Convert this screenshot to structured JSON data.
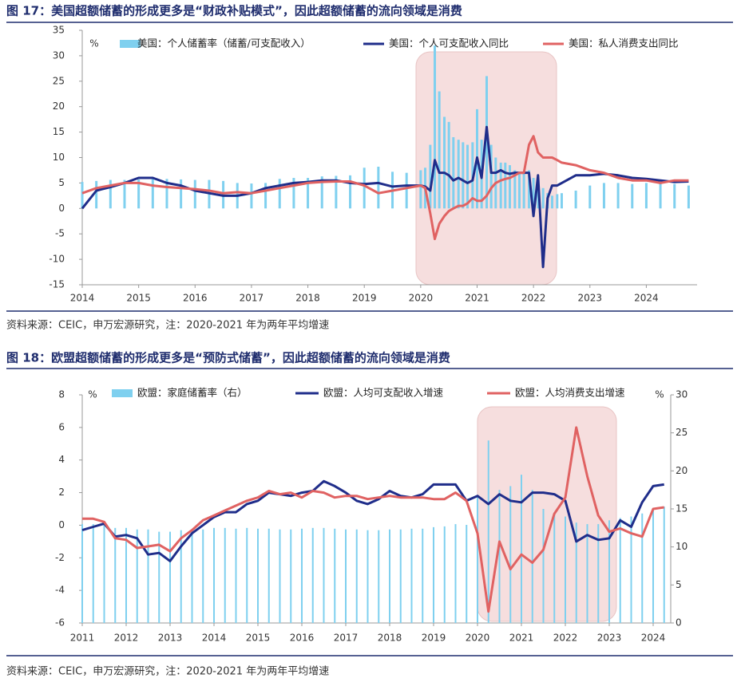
{
  "chart_data": [
    {
      "type": "combo",
      "title": "图 17：美国超额储蓄的形成更多是“财政补贴模式”，因此超额储蓄的流向领域是消费",
      "note": "资料来源：CEIC，申万宏源研究，注：2020-2021 年为两年平均增速",
      "y_unit": "%",
      "x": [
        2014,
        2014.25,
        2014.5,
        2014.75,
        2015,
        2015.25,
        2015.5,
        2015.75,
        2016,
        2016.25,
        2016.5,
        2016.75,
        2017,
        2017.25,
        2017.5,
        2017.75,
        2018,
        2018.25,
        2018.5,
        2018.75,
        2019,
        2019.25,
        2019.5,
        2019.75,
        2020,
        2020.08,
        2020.17,
        2020.25,
        2020.33,
        2020.42,
        2020.5,
        2020.58,
        2020.67,
        2020.75,
        2020.83,
        2020.92,
        2021,
        2021.08,
        2021.17,
        2021.25,
        2021.33,
        2021.42,
        2021.5,
        2021.58,
        2021.67,
        2021.75,
        2021.83,
        2021.92,
        2022,
        2022.08,
        2022.17,
        2022.25,
        2022.33,
        2022.42,
        2022.5,
        2022.75,
        2023,
        2023.25,
        2023.5,
        2023.75,
        2024,
        2024.25,
        2024.5,
        2024.75
      ],
      "xlim": [
        2014,
        2024.9
      ],
      "xticks": [
        2014,
        2015,
        2016,
        2017,
        2018,
        2019,
        2020,
        2021,
        2022,
        2023,
        2024
      ],
      "ylim": [
        -15,
        35
      ],
      "yticks": [
        -15,
        -10,
        -5,
        0,
        5,
        10,
        15,
        20,
        25,
        30,
        35
      ],
      "series": [
        {
          "name": "美国：个人储蓄率（储蓄/可支配收入）",
          "type": "bar",
          "color": "#7fd0ef",
          "values": [
            5.2,
            5.4,
            5.6,
            5.6,
            5.7,
            5.8,
            5.8,
            5.7,
            5.6,
            5.6,
            5.4,
            5.0,
            4.9,
            5.0,
            5.8,
            6.0,
            6.0,
            6.3,
            6.4,
            6.5,
            8.0,
            8.2,
            7.2,
            7.0,
            7.5,
            8,
            12.5,
            32,
            23,
            18,
            17,
            14,
            13.5,
            13,
            12.5,
            13,
            19.5,
            13.5,
            26,
            12.5,
            10,
            9,
            9,
            8.5,
            7.5,
            7,
            7,
            7.5,
            6,
            5,
            4,
            3,
            2.5,
            2.8,
            3,
            3.5,
            4.5,
            5,
            5,
            4.8,
            5,
            5,
            4.8,
            4.5
          ]
        },
        {
          "name": "美国：个人可支配收入同比",
          "type": "line",
          "color": "#1f2d8a",
          "values": [
            0,
            3.5,
            4.2,
            5.0,
            6.0,
            6.0,
            5.0,
            4.5,
            3.5,
            3.0,
            2.5,
            2.5,
            3.0,
            4.0,
            4.5,
            5.0,
            5.2,
            5.5,
            5.5,
            5.0,
            4.8,
            5.0,
            4.3,
            4.5,
            4.5,
            4.3,
            3.5,
            9.5,
            7.0,
            7.0,
            6.5,
            5.5,
            6.0,
            5.5,
            5.0,
            5.5,
            10.0,
            6.0,
            16.0,
            7.0,
            7.0,
            7.5,
            7.0,
            6.8,
            7.0,
            7.0,
            7.0,
            7.0,
            -1.5,
            6.5,
            -11.5,
            2,
            4.5,
            4.5,
            5,
            6.5,
            6.5,
            6.8,
            6.5,
            6,
            5.8,
            5.5,
            5.2,
            5.3
          ]
        },
        {
          "name": "美国：私人消费支出同比",
          "type": "line",
          "color": "#e06262",
          "values": [
            3,
            4,
            4.5,
            5.0,
            5.0,
            4.5,
            4.2,
            4.0,
            3.8,
            3.5,
            3.0,
            3.2,
            3.0,
            3.5,
            4.0,
            4.5,
            5.0,
            5.2,
            5.3,
            5.3,
            4.5,
            3.0,
            3.5,
            4.0,
            4.5,
            4,
            -1,
            -6,
            -3,
            -1.5,
            -0.5,
            0,
            0.5,
            0.5,
            1,
            2,
            1.5,
            1.5,
            2.5,
            4,
            5,
            5.5,
            5.8,
            6,
            6.5,
            7,
            7,
            12.5,
            14.2,
            11,
            10,
            10,
            10,
            9.5,
            9,
            8.5,
            7.5,
            7,
            6,
            5.5,
            5.5,
            5,
            5.5,
            5.5
          ]
        }
      ]
    },
    {
      "type": "combo",
      "title": "图 18：欧盟超额储蓄的形成更多是“预防式储蓄”，因此超额储蓄的流向领域是消费",
      "note": "资料来源：CEIC，申万宏源研究，注：2020-2021 年为两年平均增速",
      "y_unit": "%",
      "y2_unit": "%",
      "x": [
        2011,
        2011.25,
        2011.5,
        2011.75,
        2012,
        2012.25,
        2012.5,
        2012.75,
        2013,
        2013.25,
        2013.5,
        2013.75,
        2014,
        2014.25,
        2014.5,
        2014.75,
        2015,
        2015.25,
        2015.5,
        2015.75,
        2016,
        2016.25,
        2016.5,
        2016.75,
        2017,
        2017.25,
        2017.5,
        2017.75,
        2018,
        2018.25,
        2018.5,
        2018.75,
        2019,
        2019.25,
        2019.5,
        2019.75,
        2020,
        2020.25,
        2020.5,
        2020.75,
        2021,
        2021.25,
        2021.5,
        2021.75,
        2022,
        2022.25,
        2022.5,
        2022.75,
        2023,
        2023.25,
        2023.5,
        2023.75,
        2024,
        2024.25
      ],
      "xlim": [
        2011,
        2024.4
      ],
      "xticks": [
        2011,
        2012,
        2013,
        2014,
        2015,
        2016,
        2017,
        2018,
        2019,
        2020,
        2021,
        2022,
        2023,
        2024
      ],
      "ylim": [
        -6,
        8
      ],
      "yticks": [
        -6,
        -4,
        -2,
        0,
        2,
        4,
        6,
        8
      ],
      "y2lim": [
        0,
        30
      ],
      "y2ticks": [
        0,
        5,
        10,
        15,
        20,
        25,
        30
      ],
      "series": [
        {
          "name": "欧盟：家庭储蓄率（右）",
          "type": "bar",
          "axis": "y2",
          "color": "#7fd0ef",
          "values": [
            13,
            13,
            12.8,
            12.5,
            12.5,
            12.3,
            12.3,
            12.0,
            12.0,
            12.2,
            12.2,
            12.3,
            12.5,
            12.5,
            12.4,
            12.5,
            12.4,
            12.4,
            12.3,
            12.3,
            12.4,
            12.5,
            12.5,
            12.4,
            12.3,
            12.3,
            12.2,
            12.2,
            12.3,
            12.3,
            12.4,
            12.4,
            12.6,
            12.7,
            13.0,
            12.9,
            16.5,
            24.0,
            17.5,
            18.0,
            19.5,
            17.5,
            15.0,
            14.3,
            14.0,
            13.2,
            13.0,
            13.0,
            13.5,
            13.8,
            14.0,
            14.4,
            15.0,
            15.3
          ]
        },
        {
          "name": "欧盟：人均可支配收入增速",
          "type": "line",
          "color": "#1f2d8a",
          "values": [
            -0.3,
            -0.1,
            0.1,
            -0.7,
            -0.6,
            -0.8,
            -1.8,
            -1.7,
            -2.2,
            -1.3,
            -0.5,
            0,
            0.5,
            0.8,
            0.8,
            1.3,
            1.5,
            2.0,
            1.9,
            1.8,
            2.0,
            2.1,
            2.7,
            2.4,
            2.0,
            1.5,
            1.3,
            1.6,
            2.1,
            1.8,
            1.7,
            1.9,
            2.5,
            2.5,
            2.5,
            1.5,
            1.8,
            1.3,
            1.9,
            1.5,
            1.4,
            2.0,
            2.0,
            1.9,
            1.5,
            -1.0,
            -0.6,
            -0.9,
            -0.8,
            0.3,
            -0.1,
            1.4,
            2.4,
            2.5
          ]
        },
        {
          "name": "欧盟：人均消费支出增速",
          "type": "line",
          "color": "#e06262",
          "values": [
            0.4,
            0.4,
            0.2,
            -0.8,
            -0.9,
            -1.4,
            -1.3,
            -1.2,
            -1.6,
            -0.8,
            -0.3,
            0.3,
            0.6,
            0.9,
            1.2,
            1.5,
            1.7,
            2.1,
            1.9,
            2.0,
            1.7,
            2.1,
            2.0,
            1.7,
            1.8,
            1.8,
            1.6,
            1.7,
            1.8,
            1.7,
            1.7,
            1.7,
            1.6,
            1.6,
            2.0,
            1.5,
            -0.5,
            -5.3,
            -1.0,
            -2.7,
            -1.8,
            -2.3,
            -1.5,
            0.7,
            1.7,
            6.0,
            3.0,
            0.6,
            -0.4,
            -0.2,
            -0.5,
            -0.7,
            1.0,
            1.1
          ]
        }
      ]
    }
  ]
}
